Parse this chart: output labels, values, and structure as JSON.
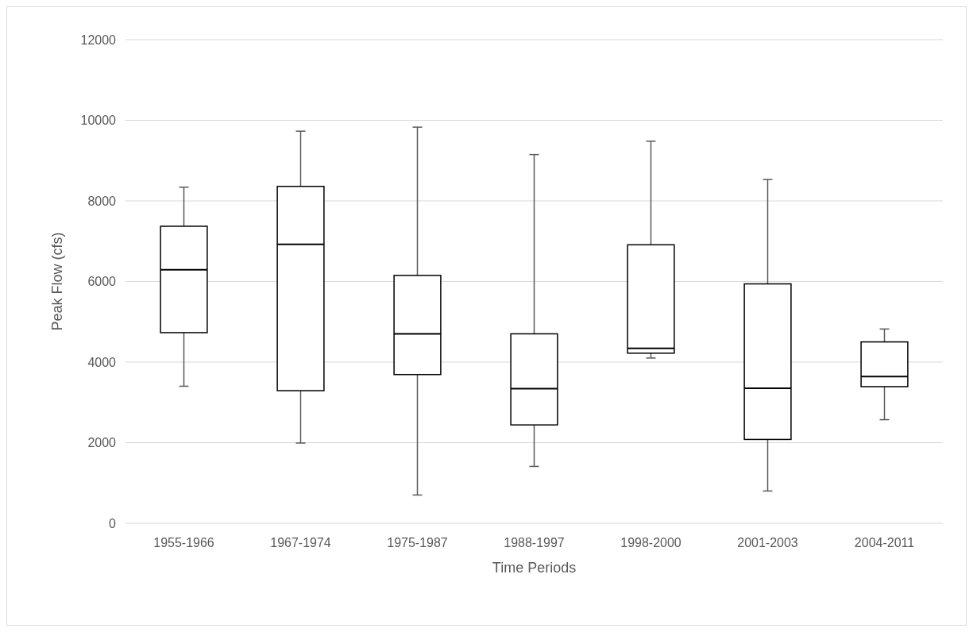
{
  "chart_data": {
    "type": "box",
    "xlabel": "Time Periods",
    "ylabel": "Peak Flow (cfs)",
    "categories": [
      "1955-1966",
      "1967-1974",
      "1975-1987",
      "1988-1997",
      "1998-2000",
      "2001-2003",
      "2004-2011"
    ],
    "boxes": [
      {
        "low": 3400,
        "q1": 4730,
        "median": 6290,
        "q3": 7370,
        "high": 8340
      },
      {
        "low": 1990,
        "q1": 3290,
        "median": 6920,
        "q3": 8360,
        "high": 9730
      },
      {
        "low": 700,
        "q1": 3690,
        "median": 4700,
        "q3": 6150,
        "high": 9830
      },
      {
        "low": 1410,
        "q1": 2440,
        "median": 3340,
        "q3": 4700,
        "high": 9150
      },
      {
        "low": 4100,
        "q1": 4220,
        "median": 4340,
        "q3": 6910,
        "high": 9480
      },
      {
        "low": 800,
        "q1": 2080,
        "median": 3350,
        "q3": 5940,
        "high": 8530
      },
      {
        "low": 2570,
        "q1": 3390,
        "median": 3640,
        "q3": 4500,
        "high": 4820
      }
    ],
    "ylim": [
      0,
      12000
    ],
    "yticks": [
      0,
      2000,
      4000,
      6000,
      8000,
      10000,
      12000
    ],
    "grid": "y"
  }
}
